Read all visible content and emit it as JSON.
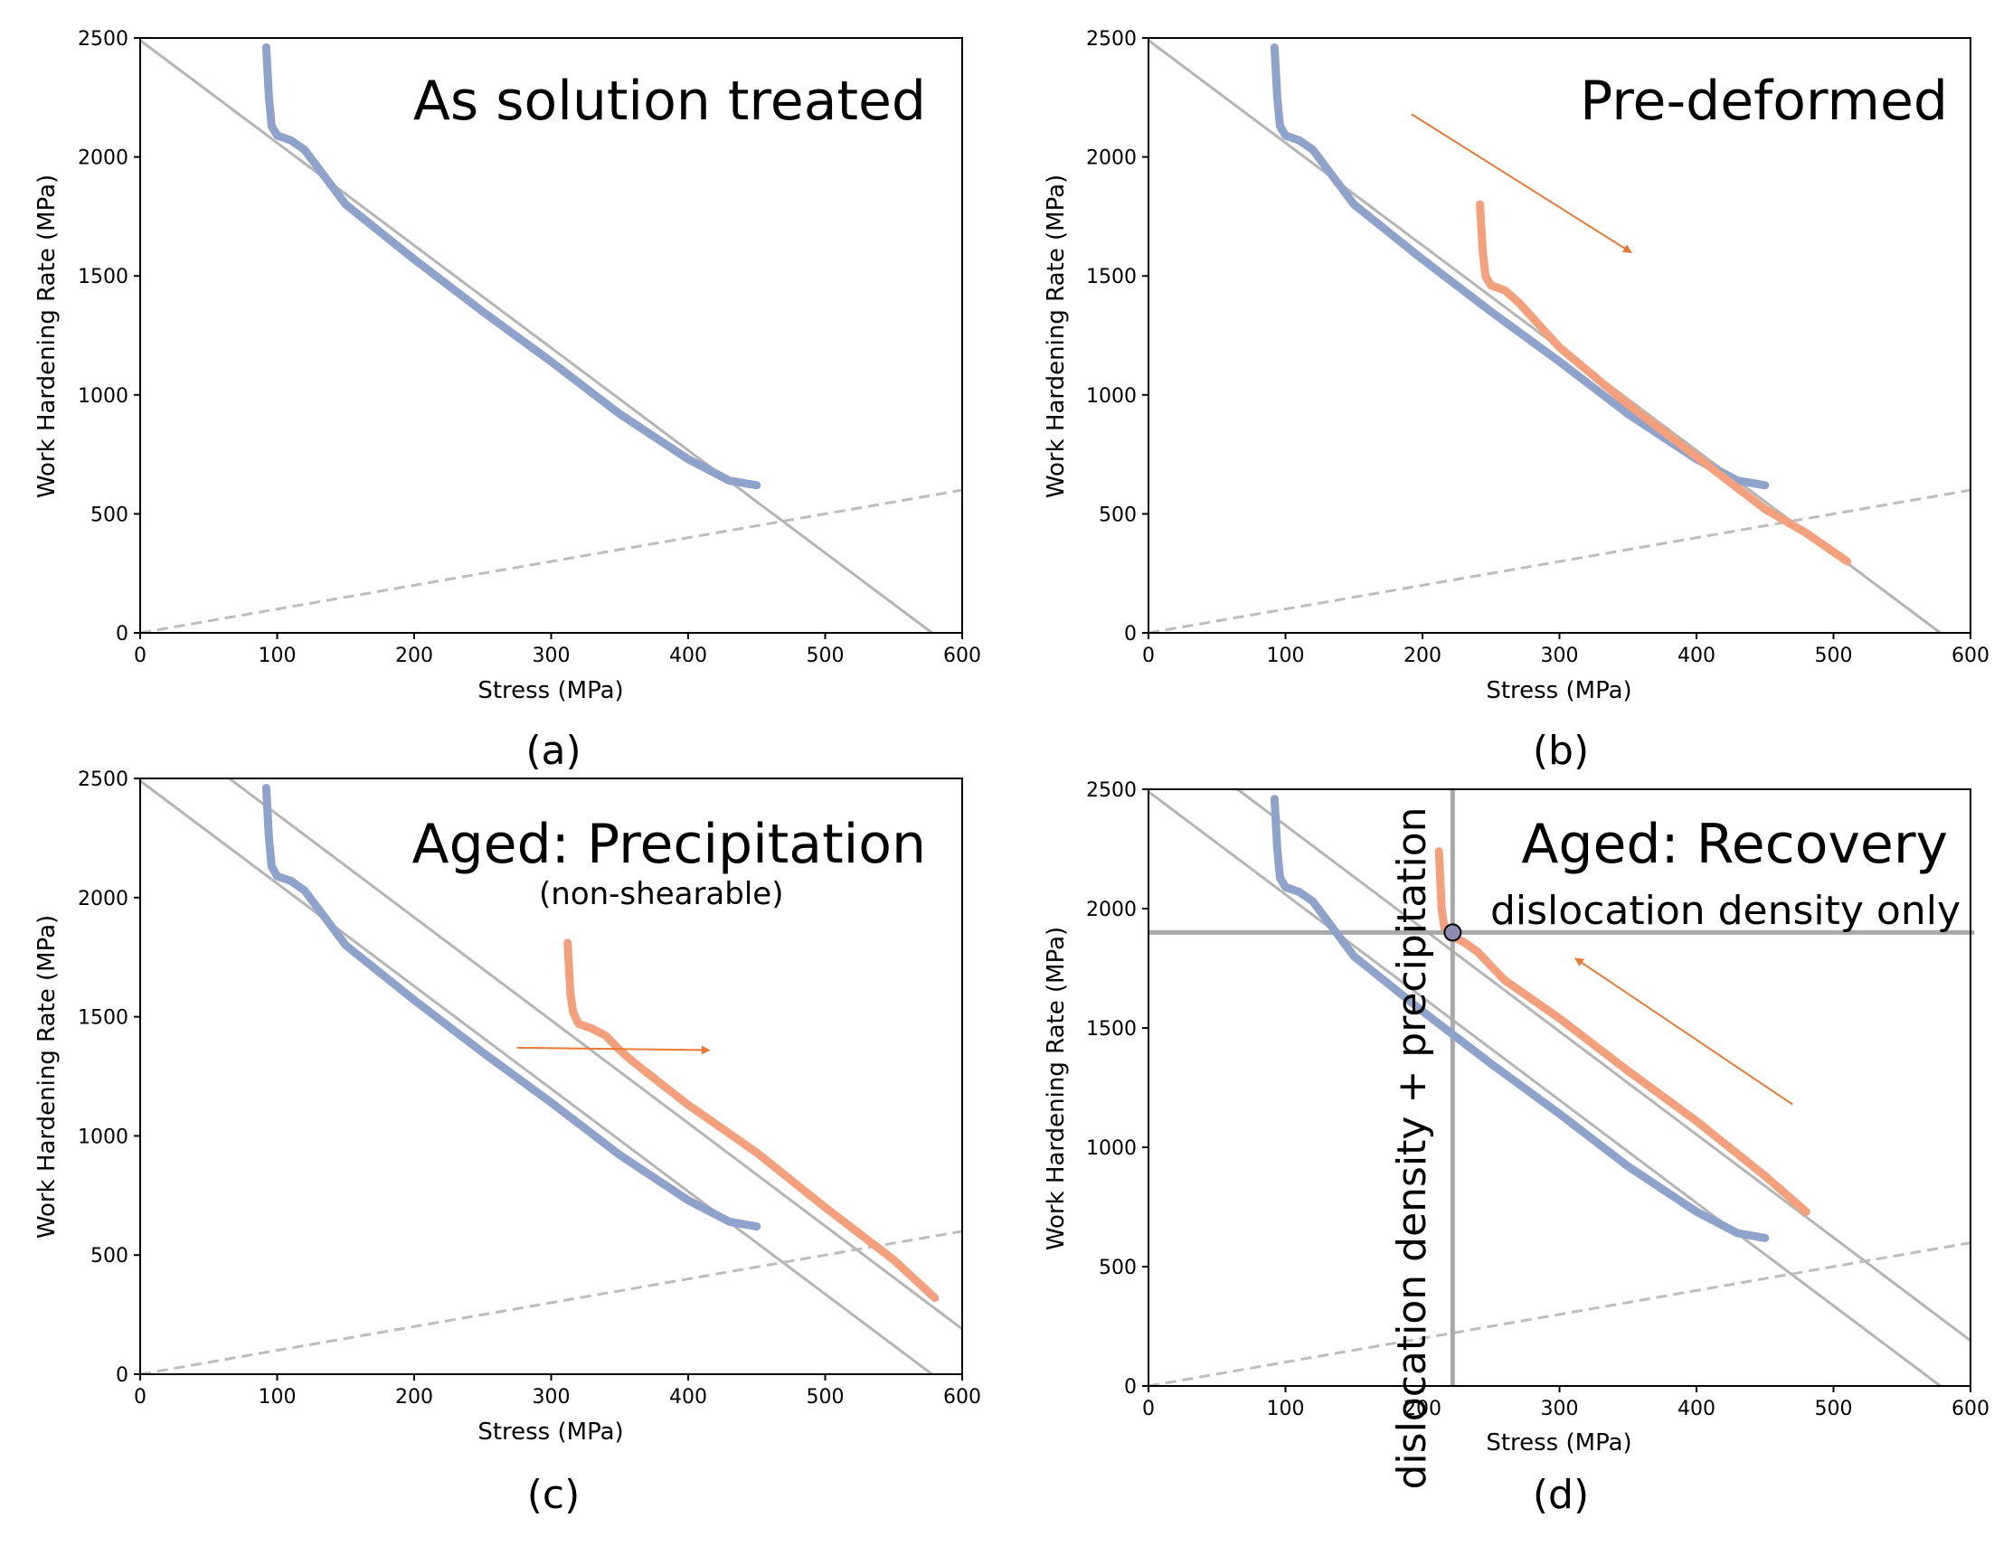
{
  "colors": {
    "solution_treated": "#8fa2cc",
    "modified": "#f5a07c",
    "arrow": "#e87a36",
    "reference_line": "#b5b5b5",
    "dashed_line": "#bdbdbd",
    "crosshair": "#a9a9a9",
    "frame": "#000000"
  },
  "panel_labels": [
    "(a)",
    "(b)",
    "(c)",
    "(d)"
  ],
  "chart_data": [
    {
      "id": "a",
      "type": "line",
      "title": "As solution treated",
      "subtitle": "",
      "xlabel": "Stress (MPa)",
      "ylabel": "Work Hardening Rate (MPa)",
      "xlim": [
        0,
        600
      ],
      "ylim": [
        0,
        2500
      ],
      "xticks": [
        0,
        100,
        200,
        300,
        400,
        500,
        600
      ],
      "yticks": [
        0,
        500,
        1000,
        1500,
        2000,
        2500
      ],
      "reference_lines": [
        {
          "name": "linear fit",
          "style": "solid",
          "x": [
            0,
            578
          ],
          "y": [
            2490,
            0
          ]
        },
        {
          "name": "dashed reference",
          "style": "dashed",
          "x": [
            0,
            600
          ],
          "y": [
            0,
            600
          ]
        }
      ],
      "series": [
        {
          "name": "solution treated",
          "color_key": "solution_treated",
          "x": [
            92,
            94,
            96,
            100,
            105,
            110,
            120,
            150,
            200,
            250,
            300,
            350,
            400,
            430,
            450
          ],
          "y": [
            2460,
            2250,
            2130,
            2090,
            2080,
            2070,
            2030,
            1800,
            1570,
            1350,
            1140,
            920,
            730,
            640,
            620
          ]
        }
      ],
      "arrows": []
    },
    {
      "id": "b",
      "type": "line",
      "title": "Pre-deformed",
      "subtitle": "",
      "xlabel": "Stress (MPa)",
      "ylabel": "Work Hardening Rate (MPa)",
      "xlim": [
        0,
        600
      ],
      "ylim": [
        0,
        2500
      ],
      "xticks": [
        0,
        100,
        200,
        300,
        400,
        500,
        600
      ],
      "yticks": [
        0,
        500,
        1000,
        1500,
        2000,
        2500
      ],
      "reference_lines": [
        {
          "name": "linear fit",
          "style": "solid",
          "x": [
            0,
            578
          ],
          "y": [
            2490,
            0
          ]
        },
        {
          "name": "dashed reference",
          "style": "dashed",
          "x": [
            0,
            600
          ],
          "y": [
            0,
            600
          ]
        }
      ],
      "series": [
        {
          "name": "solution treated",
          "color_key": "solution_treated",
          "x": [
            92,
            94,
            96,
            100,
            105,
            110,
            120,
            150,
            200,
            250,
            300,
            350,
            400,
            430,
            450
          ],
          "y": [
            2460,
            2250,
            2130,
            2090,
            2080,
            2070,
            2030,
            1800,
            1570,
            1350,
            1140,
            920,
            730,
            640,
            620
          ]
        },
        {
          "name": "pre-deformed",
          "color_key": "modified",
          "x": [
            242,
            244,
            246,
            250,
            255,
            260,
            270,
            300,
            350,
            400,
            450,
            480,
            510
          ],
          "y": [
            1800,
            1600,
            1500,
            1460,
            1450,
            1440,
            1390,
            1200,
            960,
            740,
            520,
            420,
            300
          ]
        }
      ],
      "arrows": [
        {
          "from": [
            192,
            2180
          ],
          "to": [
            352,
            1600
          ]
        }
      ]
    },
    {
      "id": "c",
      "type": "line",
      "title": "Aged: Precipitation",
      "subtitle": "(non-shearable)",
      "xlabel": "Stress (MPa)",
      "ylabel": "Work Hardening Rate (MPa)",
      "xlim": [
        0,
        600
      ],
      "ylim": [
        0,
        2500
      ],
      "xticks": [
        0,
        100,
        200,
        300,
        400,
        500,
        600
      ],
      "yticks": [
        0,
        500,
        1000,
        1500,
        2000,
        2500
      ],
      "reference_lines": [
        {
          "name": "linear fit",
          "style": "solid",
          "x": [
            0,
            578
          ],
          "y": [
            2490,
            0
          ]
        },
        {
          "name": "shifted fit",
          "style": "solid",
          "x": [
            65,
            600
          ],
          "y": [
            2500,
            190
          ]
        },
        {
          "name": "dashed reference",
          "style": "dashed",
          "x": [
            0,
            600
          ],
          "y": [
            0,
            600
          ]
        }
      ],
      "series": [
        {
          "name": "solution treated",
          "color_key": "solution_treated",
          "x": [
            92,
            94,
            96,
            100,
            105,
            110,
            120,
            150,
            200,
            250,
            300,
            350,
            400,
            430,
            450
          ],
          "y": [
            2460,
            2250,
            2130,
            2090,
            2080,
            2070,
            2030,
            1800,
            1570,
            1350,
            1140,
            920,
            730,
            640,
            620
          ]
        },
        {
          "name": "aged precipitation",
          "color_key": "modified",
          "x": [
            312,
            314,
            316,
            320,
            325,
            330,
            340,
            350,
            360,
            400,
            450,
            500,
            550,
            580
          ],
          "y": [
            1810,
            1600,
            1520,
            1470,
            1460,
            1450,
            1420,
            1360,
            1310,
            1130,
            930,
            700,
            480,
            320
          ]
        }
      ],
      "arrows": [
        {
          "from": [
            275,
            1370
          ],
          "to": [
            415,
            1360
          ]
        }
      ]
    },
    {
      "id": "d",
      "type": "line",
      "title": "Aged: Recovery",
      "subtitle": "dislocation density only",
      "vertical_annotation": "dislocation density + precipitation",
      "xlabel": "Stress (MPa)",
      "ylabel": "Work Hardening Rate (MPa)",
      "xlim": [
        0,
        600
      ],
      "ylim": [
        0,
        2500
      ],
      "xticks": [
        0,
        100,
        200,
        300,
        400,
        500,
        600
      ],
      "yticks": [
        0,
        500,
        1000,
        1500,
        2000,
        2500
      ],
      "reference_lines": [
        {
          "name": "linear fit",
          "style": "solid",
          "x": [
            0,
            578
          ],
          "y": [
            2490,
            0
          ]
        },
        {
          "name": "shifted fit",
          "style": "solid",
          "x": [
            65,
            600
          ],
          "y": [
            2500,
            190
          ]
        },
        {
          "name": "dashed reference",
          "style": "dashed",
          "x": [
            0,
            600
          ],
          "y": [
            0,
            600
          ]
        }
      ],
      "crosshair": {
        "x": 222,
        "y": 1900
      },
      "marker": {
        "x": 222,
        "y": 1900
      },
      "series": [
        {
          "name": "solution treated",
          "color_key": "solution_treated",
          "x": [
            92,
            94,
            96,
            100,
            105,
            110,
            120,
            150,
            200,
            250,
            300,
            350,
            400,
            430,
            450
          ],
          "y": [
            2460,
            2250,
            2130,
            2090,
            2080,
            2070,
            2030,
            1800,
            1570,
            1350,
            1140,
            920,
            730,
            640,
            620
          ]
        },
        {
          "name": "aged recovery",
          "color_key": "modified",
          "x": [
            212,
            214,
            216,
            220,
            230,
            240,
            260,
            300,
            350,
            400,
            450,
            480
          ],
          "y": [
            2240,
            2000,
            1920,
            1890,
            1860,
            1820,
            1700,
            1540,
            1320,
            1110,
            880,
            730
          ]
        }
      ],
      "arrows": [
        {
          "from": [
            470,
            1180
          ],
          "to": [
            312,
            1790
          ]
        }
      ]
    }
  ]
}
